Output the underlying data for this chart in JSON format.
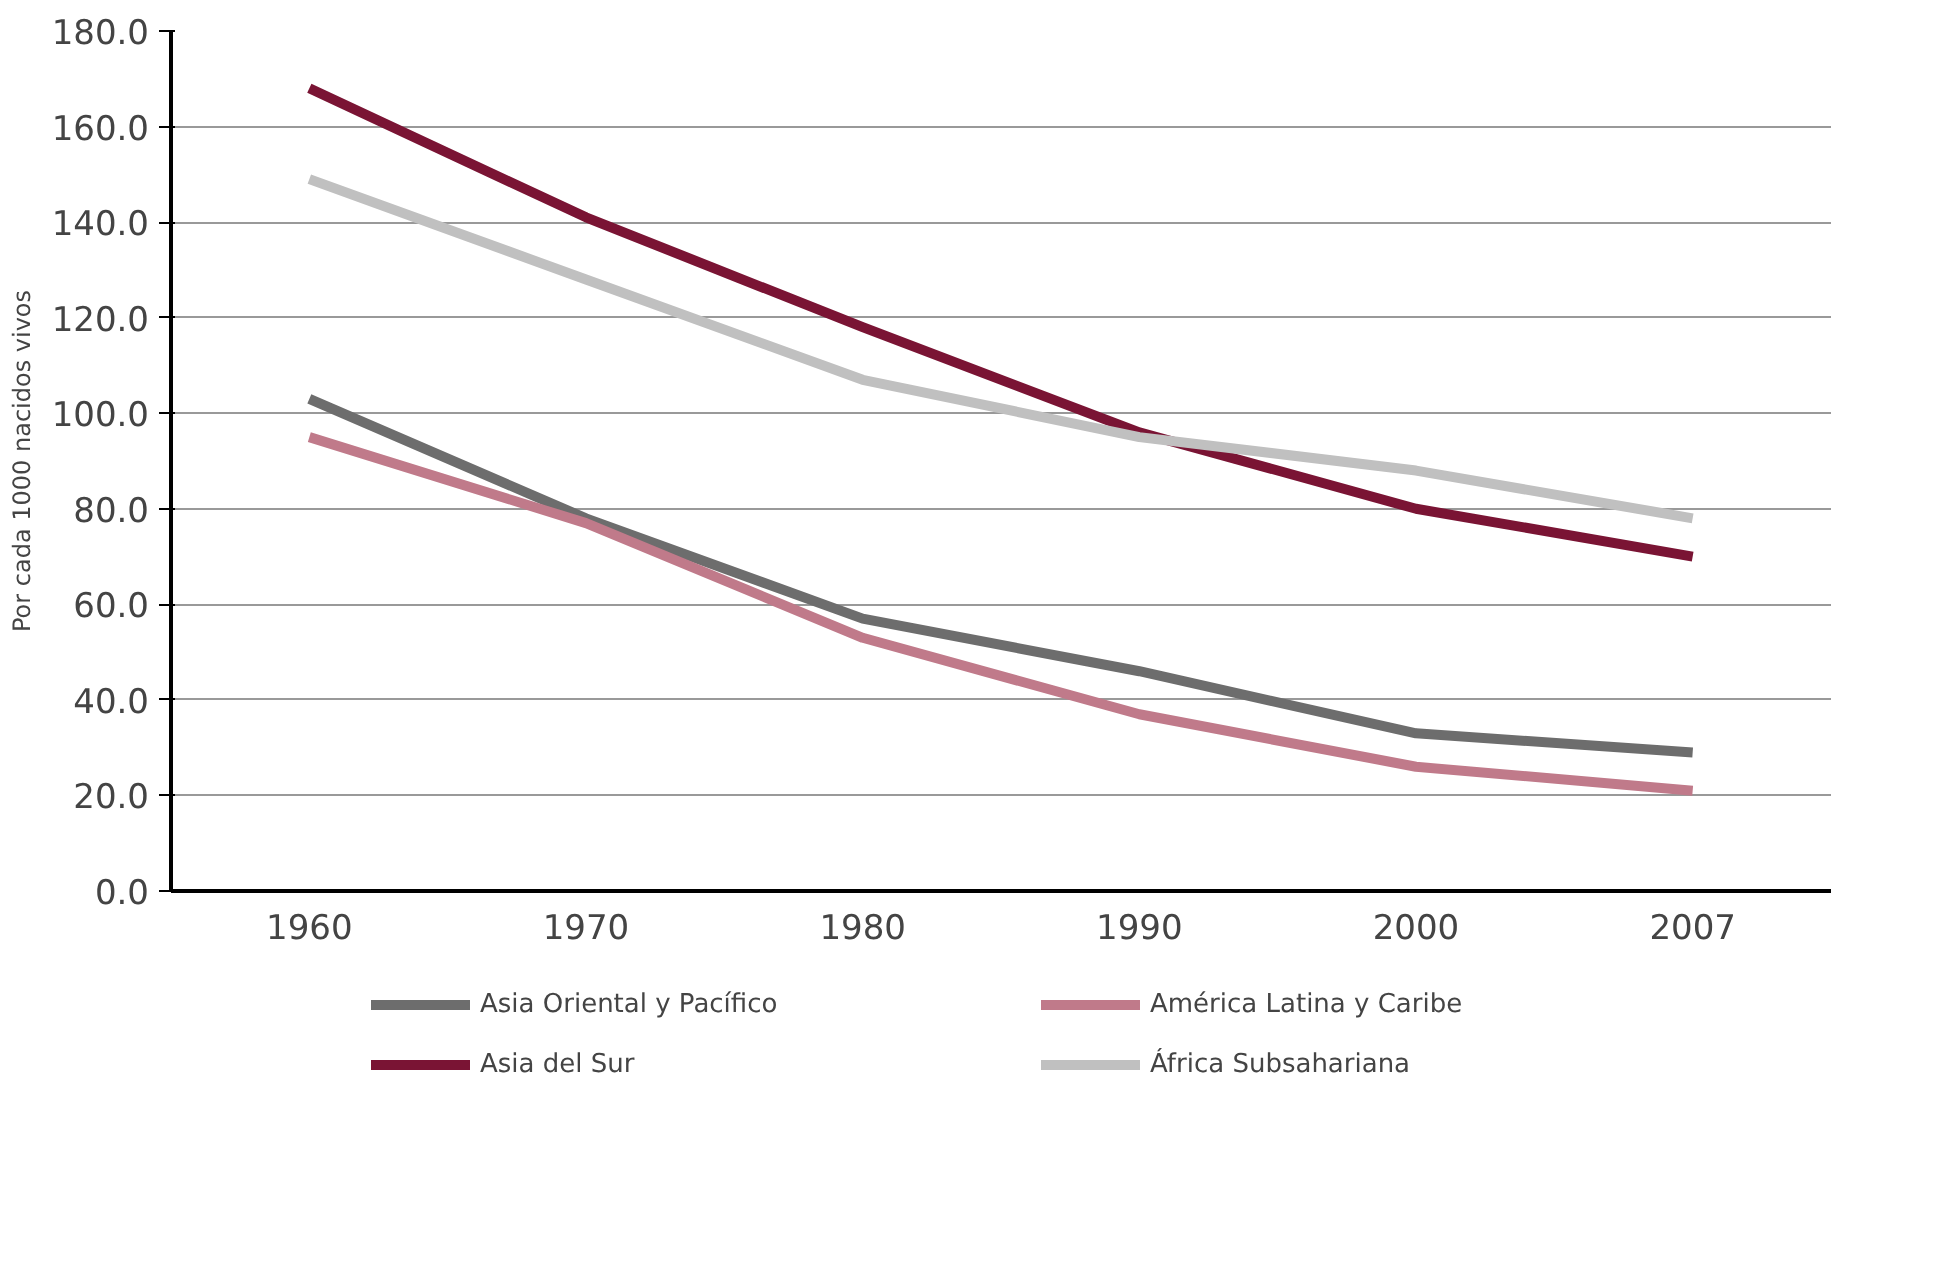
{
  "chart_data": {
    "type": "line",
    "ylabel": "Por cada 1000 nacidos vivos",
    "categories": [
      "1960",
      "1970",
      "1980",
      "1990",
      "2000",
      "2007"
    ],
    "ylim": [
      0,
      180
    ],
    "yticks": [
      {
        "value": 0,
        "label": "0.0"
      },
      {
        "value": 20,
        "label": "20.0"
      },
      {
        "value": 40,
        "label": "40.0"
      },
      {
        "value": 60,
        "label": "60.0"
      },
      {
        "value": 80,
        "label": "80.0"
      },
      {
        "value": 100,
        "label": "100.0"
      },
      {
        "value": 120,
        "label": "120.0"
      },
      {
        "value": 140,
        "label": "140.0"
      },
      {
        "value": 160,
        "label": "160.0"
      },
      {
        "value": 180,
        "label": "180.0"
      }
    ],
    "grid": "y",
    "legend": "bottom",
    "marker": "none",
    "line_style": "solid",
    "series": [
      {
        "name": "Asia Oriental y Pacífico",
        "color": "#6d6d6d",
        "values": [
          103,
          78,
          57,
          46,
          33,
          29
        ]
      },
      {
        "name": "Asia del Sur",
        "color": "#7a1434",
        "values": [
          168,
          141,
          118,
          96,
          80,
          70
        ]
      },
      {
        "name": "América Latina y Caribe",
        "color": "#c07a8a",
        "values": [
          95,
          77,
          53,
          37,
          26,
          21
        ]
      },
      {
        "name": "África Subsahariana",
        "color": "#c0c0c0",
        "values": [
          149,
          128,
          107,
          95,
          88,
          78
        ]
      }
    ]
  }
}
